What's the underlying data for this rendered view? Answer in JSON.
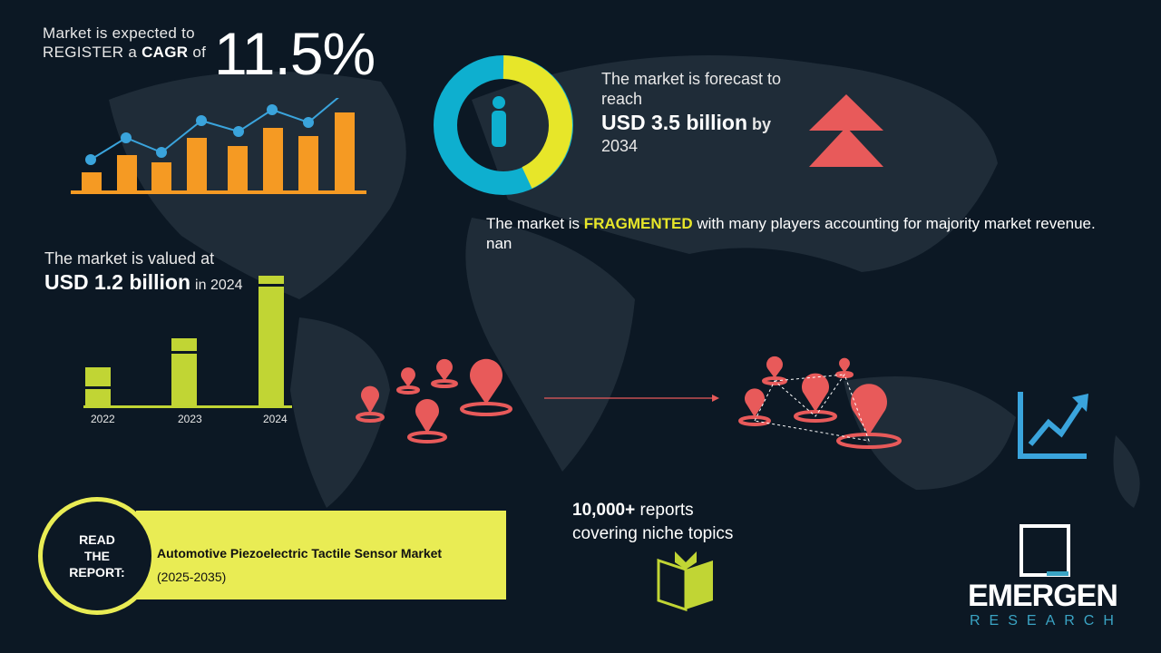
{
  "cagr": {
    "line1": "Market is expected to",
    "line2_pre": "REGISTER a ",
    "line2_bold": "CAGR",
    "line2_post": " of",
    "value": "11.5%"
  },
  "forecast": {
    "line1": "The market is forecast to",
    "line2": "reach",
    "usd": "USD 3.5 billion",
    "by": "by",
    "year": "2034"
  },
  "fragmented": {
    "pre": "The market is ",
    "highlight": "FRAGMENTED",
    "post": " with many players accounting for majority market revenue. nan"
  },
  "valued": {
    "line1": "The market is valued at",
    "usd": "USD 1.2 billion",
    "in": "in 2024"
  },
  "value_bars": {
    "years": [
      "2022",
      "2023",
      "2024"
    ]
  },
  "report": {
    "read": "READ",
    "the": "THE",
    "report": "REPORT:",
    "title": "Automotive Piezoelectric Tactile Sensor Market",
    "period": "(2025-2035)"
  },
  "reports_count": {
    "bold": "10,000+",
    "line1_rest": " reports",
    "line2": "covering niche topics"
  },
  "logo": {
    "name": "EMERGEN",
    "sub": "RESEARCH"
  },
  "colors": {
    "background": "#0c1824",
    "orange": "#f59a23",
    "blue": "#3aa4dc",
    "teal": "#0eafcf",
    "yellow": "#e7e629",
    "lime": "#c1d534",
    "red": "#e85a5a"
  }
}
